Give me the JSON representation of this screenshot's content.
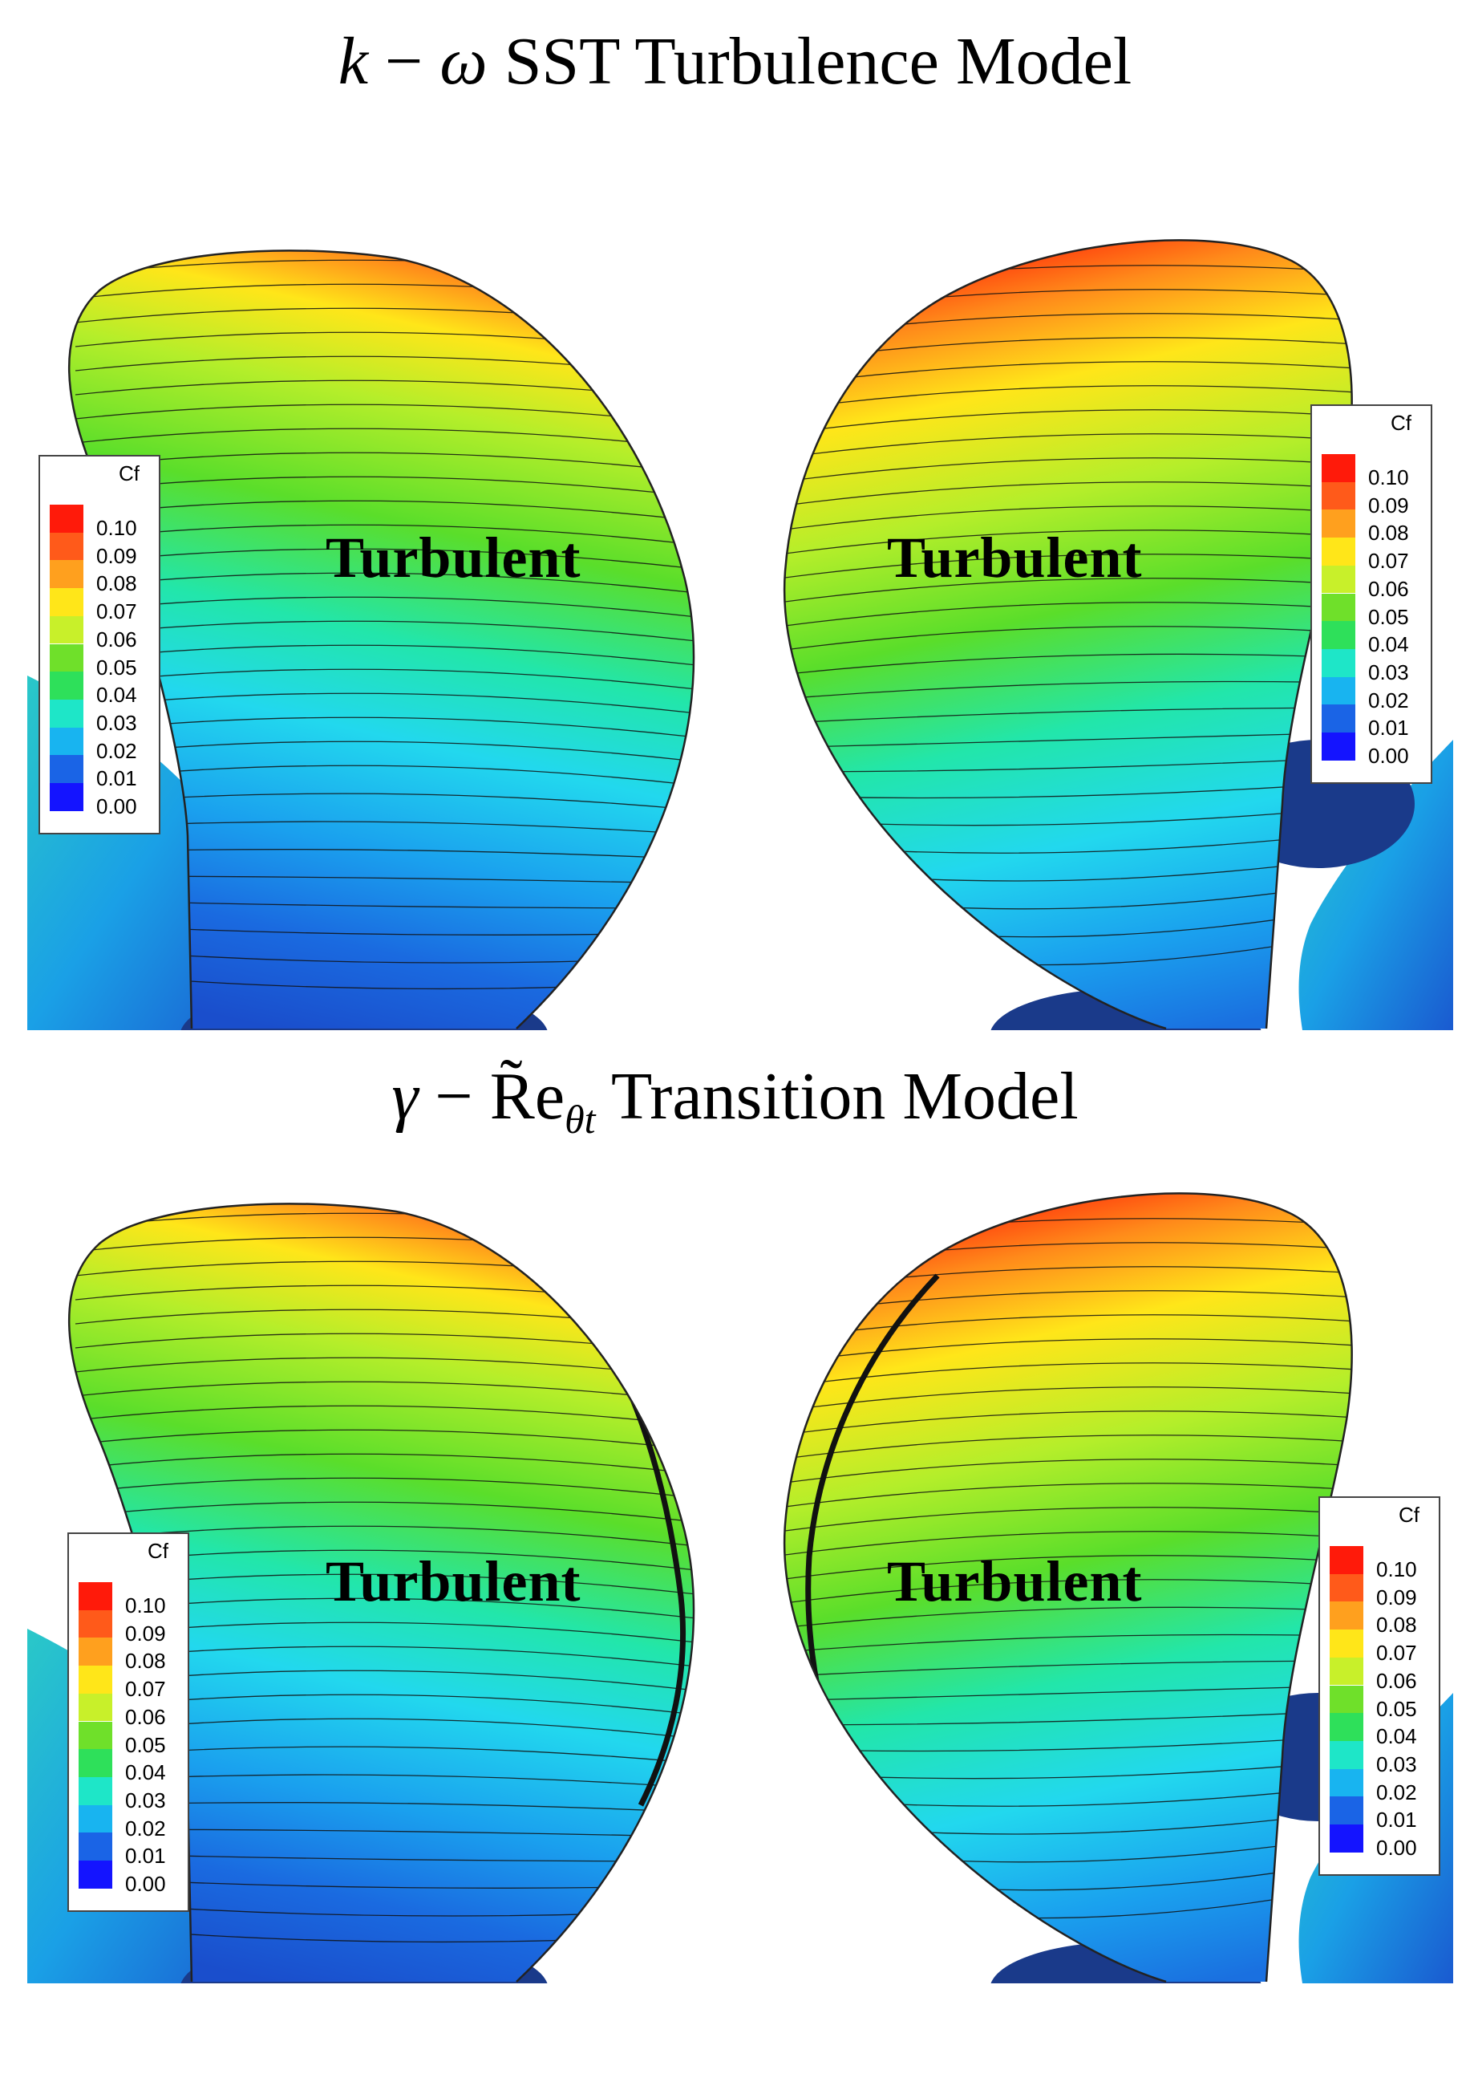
{
  "titles": {
    "top": {
      "lhs": "k",
      "sep": "−",
      "sym": "ω",
      "rest": "SST Turbulence Model"
    },
    "bottom": {
      "lhs": "γ",
      "sep": "−",
      "sym": "R̃e",
      "sub": "θt",
      "rest": "Transition Model"
    }
  },
  "region_label": "Turbulent",
  "legend": {
    "title": "Cf",
    "values": [
      "0.10",
      "0.09",
      "0.08",
      "0.07",
      "0.06",
      "0.05",
      "0.04",
      "0.03",
      "0.02",
      "0.01",
      "0.00"
    ],
    "colors": [
      "#ff1a0a",
      "#ff5a1a",
      "#ffa01e",
      "#ffe619",
      "#c8f02a",
      "#6fe02a",
      "#2ee05a",
      "#1ee6c8",
      "#18b4f0",
      "#1a64e6",
      "#1414ff"
    ]
  }
}
